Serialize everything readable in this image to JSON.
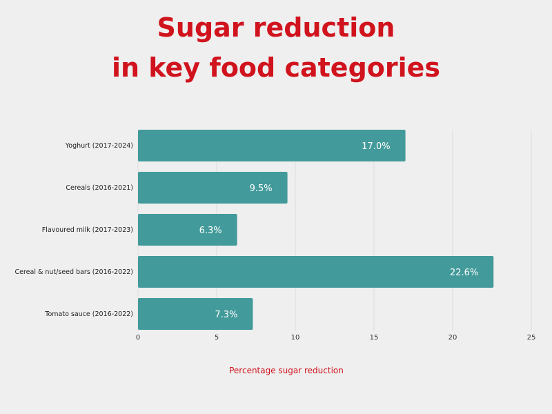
{
  "chart_data": {
    "type": "bar",
    "orientation": "horizontal",
    "title_lines": [
      "Sugar reduction",
      "in key food categories"
    ],
    "categories": [
      "Yoghurt (2017-2024)",
      "Cereals (2016-2021)",
      "Flavoured milk (2017-2023)",
      "Cereal & nut/seed bars (2016-2022)",
      "Tomato sauce (2016-2022)"
    ],
    "values": [
      17.0,
      9.5,
      6.3,
      22.6,
      7.3
    ],
    "data_labels": [
      "17.0%",
      "9.5%",
      "6.3%",
      "22.6%",
      "7.3%"
    ],
    "xlabel": "Percentage sugar reduction",
    "ylabel": "",
    "xlim": [
      0,
      25
    ],
    "xticks": [
      0,
      5,
      10,
      15,
      20,
      25
    ],
    "grid": true,
    "colors": {
      "bar": "#439a9a",
      "title": "#d0131d",
      "background": "#efefef"
    }
  }
}
